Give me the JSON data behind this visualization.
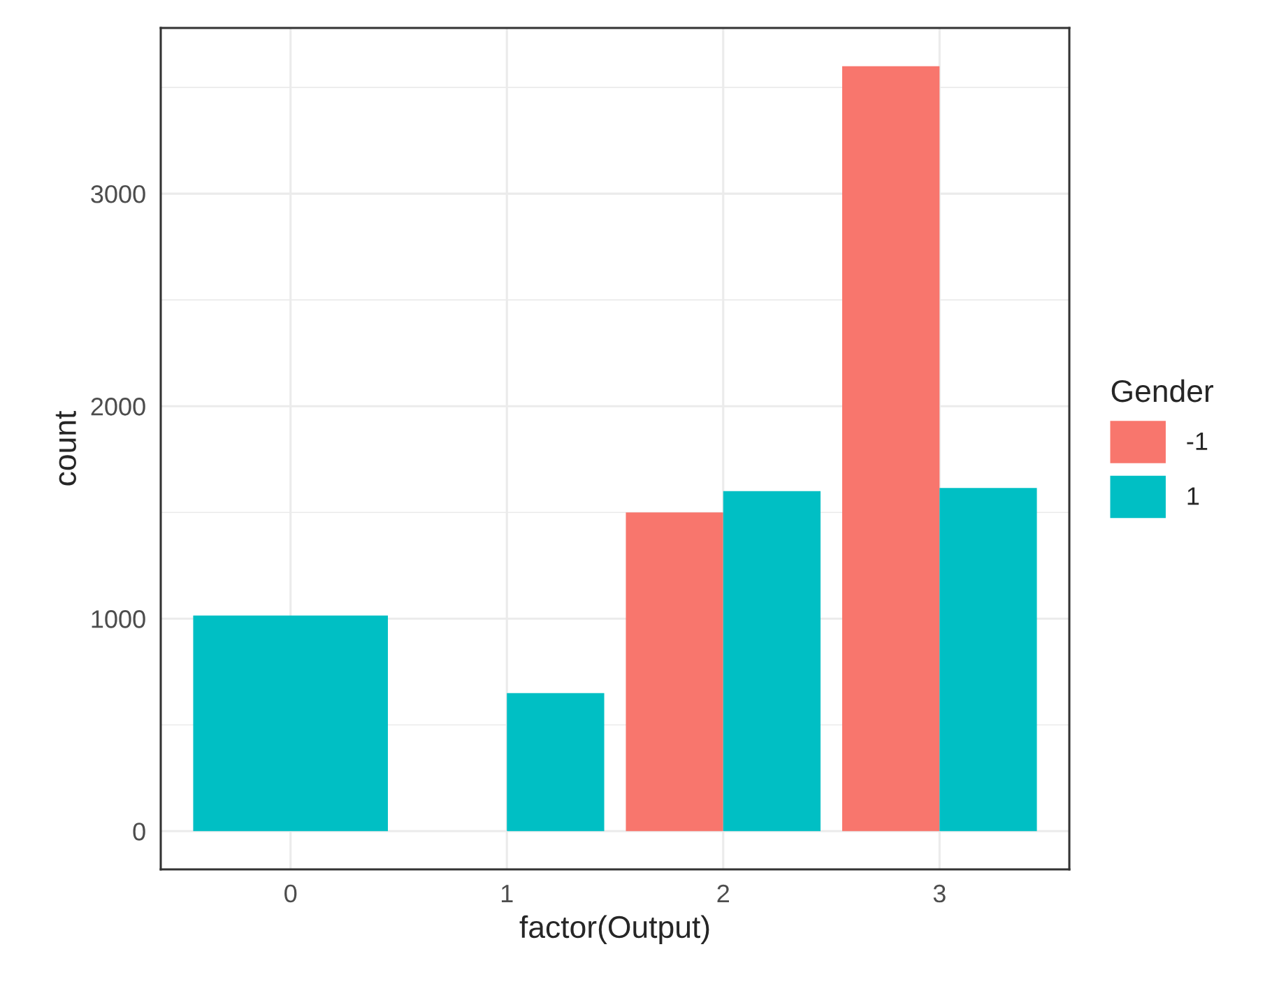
{
  "chart_data": {
    "type": "bar",
    "xlabel": "factor(Output)",
    "ylabel": "count",
    "legend_title": "Gender",
    "categories": [
      "0",
      "1",
      "2",
      "3"
    ],
    "series": [
      {
        "name": "-1",
        "color": "#f8766d",
        "values": [
          null,
          0,
          1500,
          3600
        ]
      },
      {
        "name": "1",
        "color": "#00bfc4",
        "values": [
          1015,
          650,
          1600,
          1615
        ]
      }
    ],
    "ylim": [
      -180,
      3780
    ],
    "yticks": [
      0,
      1000,
      2000,
      3000
    ],
    "grid": true,
    "legend": "right"
  }
}
